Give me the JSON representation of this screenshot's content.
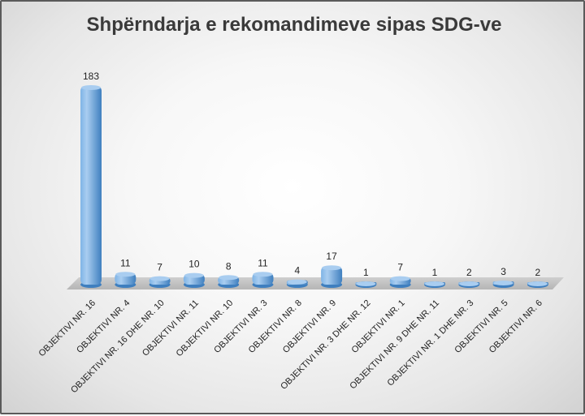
{
  "chart_data": {
    "type": "bar",
    "title": "Shpërndarja e rekomandimeve sipas SDG-ve",
    "categories": [
      "OBJEKTIVI NR. 16",
      "OBJEKTIVI NR. 4",
      "OBJEKTIVI NR. 16 DHE NR. 10",
      "OBJEKTIVI NR. 11",
      "OBJEKTIVI NR. 10",
      "OBJEKTIVI NR. 3",
      "OBJEKTIVI NR. 8",
      "OBJEKTIVI NR. 9",
      "OBJEKTIVI NR. 3 DHE NR. 12",
      "OBJEKTIVI NR. 1",
      "OBJEKTIVI NR. 9 DHE NR. 11",
      "OBJEKTIVI NR. 1 DHE NR. 3",
      "OBJEKTIVI NR. 5",
      "OBJEKTIVI NR. 6"
    ],
    "values": [
      183,
      11,
      7,
      10,
      8,
      11,
      4,
      17,
      1,
      7,
      1,
      2,
      3,
      2
    ],
    "ylim": [
      0,
      183
    ],
    "grid": false,
    "legend": "none",
    "colors": {
      "bar": "#5b9bd5",
      "bar_light": "#a9cdf0",
      "bar_dark": "#3f7fbf",
      "floor": "#c4c4c4"
    }
  }
}
